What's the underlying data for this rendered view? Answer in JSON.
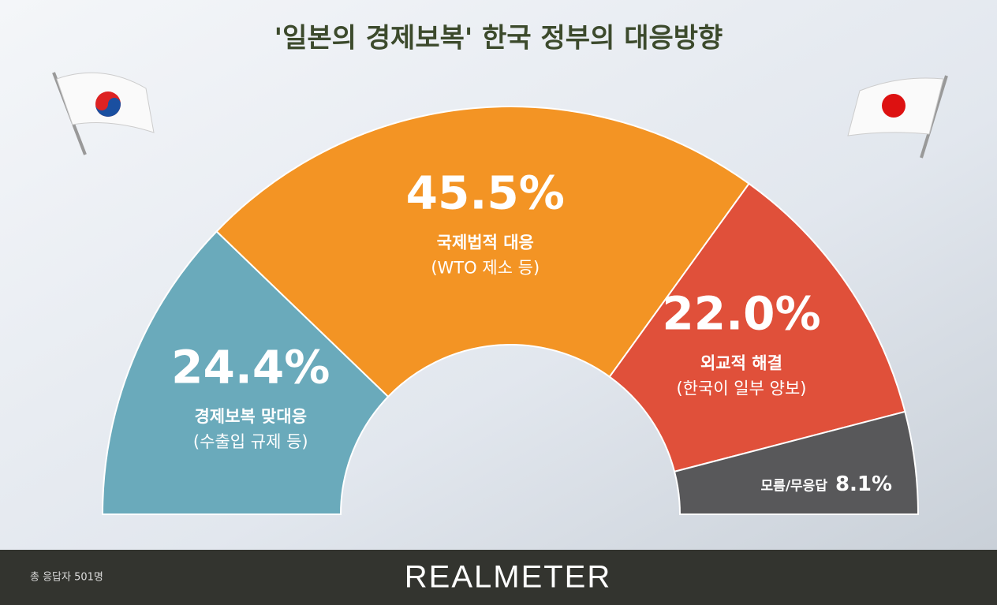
{
  "chart_data": {
    "type": "half-donut",
    "title": "'일본의 경제보복' 한국 정부의 대응방향",
    "categories": [
      "경제보복 맞대응",
      "국제법적 대응",
      "외교적 해결",
      "모름/무응답"
    ],
    "subcategories": [
      "(수출입 규제 등)",
      "(WTO 제소 등)",
      "(한국이 일부 양보)",
      null
    ],
    "values": [
      24.4,
      45.5,
      22.0,
      8.1
    ],
    "value_labels": [
      "24.4%",
      "45.5%",
      "22.0%",
      "8.1%"
    ],
    "colors": [
      "#6aaabb",
      "#f39424",
      "#e0503a",
      "#58585a"
    ],
    "footnote": "총 응답자 501명",
    "brand": "REALMETER"
  }
}
